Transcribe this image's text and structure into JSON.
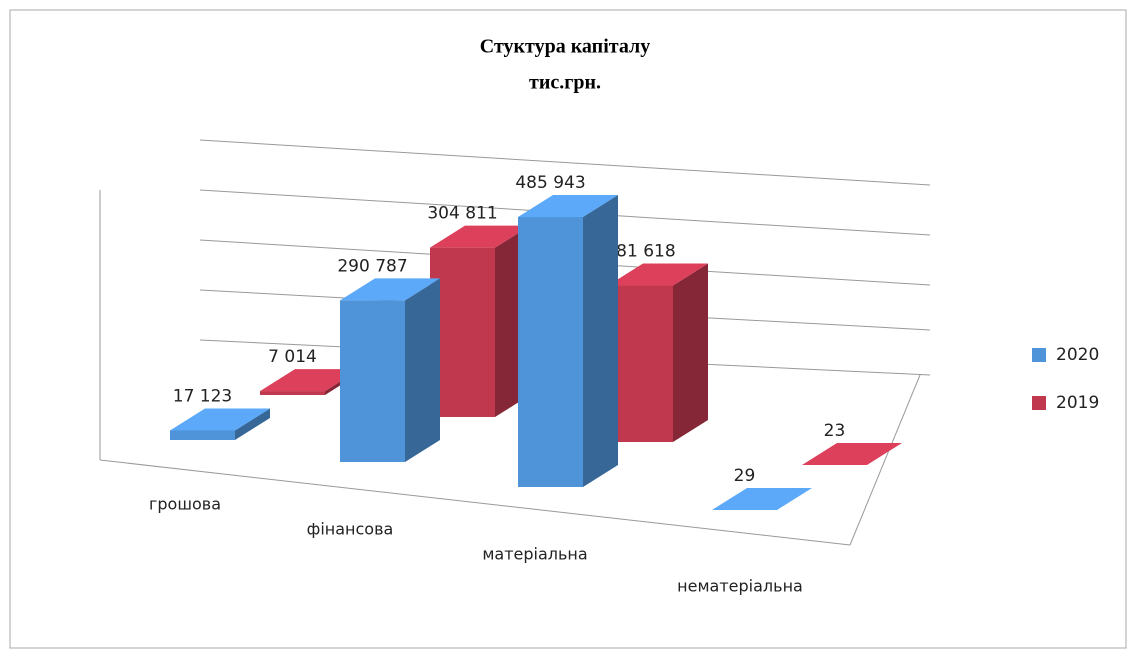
{
  "chart_data": {
    "type": "bar3d",
    "title": [
      "Стуктура капіталу",
      "тис.грн."
    ],
    "categories": [
      "грошова",
      "фінансова",
      "матеріальна",
      "нематеріальна"
    ],
    "series": [
      {
        "name": "2020",
        "color": "#4f93d8",
        "values": [
          17123,
          290787,
          485943,
          29
        ],
        "value_labels": [
          "17 123",
          "290 787",
          "485 943",
          "29"
        ]
      },
      {
        "name": "2019",
        "color": "#c0384e",
        "values": [
          7014,
          304811,
          281618,
          23
        ],
        "value_labels": [
          "7 014",
          "304 811",
          "281 618",
          "23"
        ]
      }
    ],
    "legend": "right"
  }
}
